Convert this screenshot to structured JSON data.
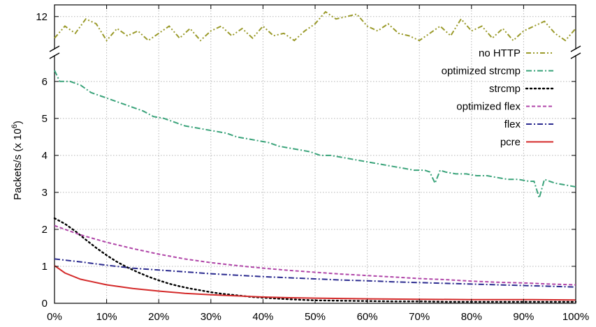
{
  "chart_data": {
    "type": "line",
    "ylabel": "Packets/s (x 10",
    "ylabel_sup": "6",
    "ylabel_close": ")",
    "x_tick_labels": [
      "0%",
      "10%",
      "20%",
      "30%",
      "40%",
      "50%",
      "60%",
      "70%",
      "80%",
      "90%",
      "100%"
    ],
    "y_tick_labels": [
      "0",
      "1",
      "2",
      "3",
      "4",
      "5",
      "6",
      "12"
    ],
    "y_break": {
      "lower_max": 6.6,
      "upper_min": 10.8,
      "upper_max": 12.4
    },
    "xlim": [
      0,
      100
    ],
    "grid": true,
    "legend_position": "right",
    "series": [
      {
        "name": "no HTTP",
        "color": "#9a9a2a",
        "dash": "dash-dot-dot",
        "x": [
          0,
          2,
          4,
          6,
          8,
          10,
          12,
          14,
          16,
          18,
          20,
          22,
          24,
          26,
          28,
          30,
          32,
          34,
          36,
          38,
          40,
          42,
          44,
          46,
          48,
          50,
          52,
          54,
          56,
          58,
          60,
          62,
          64,
          66,
          68,
          70,
          72,
          74,
          76,
          78,
          80,
          82,
          84,
          86,
          88,
          90,
          92,
          94,
          96,
          98,
          100
        ],
        "values": [
          11.1,
          11.6,
          11.3,
          11.9,
          11.7,
          11.0,
          11.5,
          11.2,
          11.4,
          11.0,
          11.3,
          11.6,
          11.1,
          11.5,
          11.0,
          11.4,
          11.6,
          11.2,
          11.5,
          11.1,
          11.6,
          11.2,
          11.3,
          11.0,
          11.4,
          11.7,
          12.2,
          11.9,
          12.0,
          12.1,
          11.6,
          11.4,
          11.7,
          11.3,
          11.2,
          11.0,
          11.3,
          11.6,
          11.2,
          11.9,
          11.4,
          11.6,
          11.1,
          11.5,
          11.0,
          11.4,
          11.6,
          11.8,
          11.3,
          11.0,
          11.5
        ]
      },
      {
        "name": "optimized strcmp",
        "color": "#3aa37a",
        "dash": "dash-dot",
        "x": [
          0,
          1,
          3,
          5,
          7,
          9,
          11,
          13,
          15,
          17,
          19,
          21,
          23,
          25,
          27,
          29,
          31,
          33,
          35,
          37,
          39,
          41,
          43,
          45,
          47,
          49,
          51,
          53,
          55,
          57,
          59,
          61,
          63,
          65,
          67,
          69,
          71,
          72,
          73,
          74,
          75,
          77,
          79,
          81,
          83,
          85,
          87,
          89,
          91,
          92,
          93,
          94,
          96,
          98,
          100
        ],
        "values": [
          6.3,
          6.0,
          6.0,
          5.9,
          5.7,
          5.6,
          5.5,
          5.4,
          5.3,
          5.2,
          5.05,
          5.0,
          4.9,
          4.8,
          4.75,
          4.7,
          4.65,
          4.6,
          4.5,
          4.45,
          4.4,
          4.35,
          4.25,
          4.2,
          4.15,
          4.1,
          4.0,
          4.0,
          3.95,
          3.9,
          3.85,
          3.8,
          3.75,
          3.7,
          3.65,
          3.6,
          3.6,
          3.55,
          3.25,
          3.6,
          3.55,
          3.5,
          3.5,
          3.45,
          3.45,
          3.4,
          3.35,
          3.35,
          3.3,
          3.3,
          2.85,
          3.35,
          3.25,
          3.2,
          3.15
        ]
      },
      {
        "name": "strcmp",
        "color": "#000000",
        "dash": "dot",
        "x": [
          0,
          2,
          4,
          6,
          8,
          10,
          12,
          14,
          16,
          18,
          20,
          22,
          24,
          26,
          28,
          30,
          32,
          34,
          36,
          38,
          40,
          45,
          50,
          55,
          60,
          65,
          70,
          75,
          80,
          85,
          90,
          95,
          100
        ],
        "values": [
          2.3,
          2.15,
          1.95,
          1.72,
          1.5,
          1.3,
          1.12,
          0.97,
          0.84,
          0.72,
          0.62,
          0.53,
          0.46,
          0.4,
          0.35,
          0.3,
          0.26,
          0.23,
          0.2,
          0.17,
          0.15,
          0.11,
          0.08,
          0.07,
          0.06,
          0.05,
          0.05,
          0.04,
          0.04,
          0.04,
          0.04,
          0.04,
          0.04
        ]
      },
      {
        "name": "optimized flex",
        "color": "#b045a8",
        "dash": "dash",
        "x": [
          0,
          5,
          10,
          15,
          20,
          25,
          30,
          35,
          40,
          45,
          50,
          55,
          60,
          65,
          70,
          75,
          80,
          85,
          90,
          95,
          100
        ],
        "values": [
          2.1,
          1.85,
          1.65,
          1.48,
          1.33,
          1.2,
          1.1,
          1.02,
          0.95,
          0.89,
          0.84,
          0.79,
          0.75,
          0.71,
          0.67,
          0.64,
          0.6,
          0.57,
          0.55,
          0.52,
          0.5
        ]
      },
      {
        "name": "flex",
        "color": "#2a2a8f",
        "dash": "dash-dot",
        "x": [
          0,
          5,
          10,
          15,
          20,
          25,
          30,
          35,
          40,
          45,
          50,
          55,
          60,
          65,
          70,
          75,
          80,
          85,
          90,
          95,
          100
        ],
        "values": [
          1.2,
          1.12,
          1.03,
          0.95,
          0.9,
          0.85,
          0.8,
          0.76,
          0.72,
          0.69,
          0.66,
          0.63,
          0.61,
          0.58,
          0.56,
          0.54,
          0.52,
          0.5,
          0.48,
          0.46,
          0.44
        ]
      },
      {
        "name": "pcre",
        "color": "#d42a2a",
        "dash": "solid",
        "x": [
          0,
          2,
          5,
          10,
          15,
          20,
          25,
          30,
          35,
          40,
          45,
          50,
          60,
          70,
          80,
          90,
          100
        ],
        "values": [
          1.02,
          0.82,
          0.65,
          0.5,
          0.4,
          0.33,
          0.27,
          0.23,
          0.2,
          0.17,
          0.15,
          0.14,
          0.12,
          0.11,
          0.1,
          0.1,
          0.09
        ]
      }
    ]
  }
}
